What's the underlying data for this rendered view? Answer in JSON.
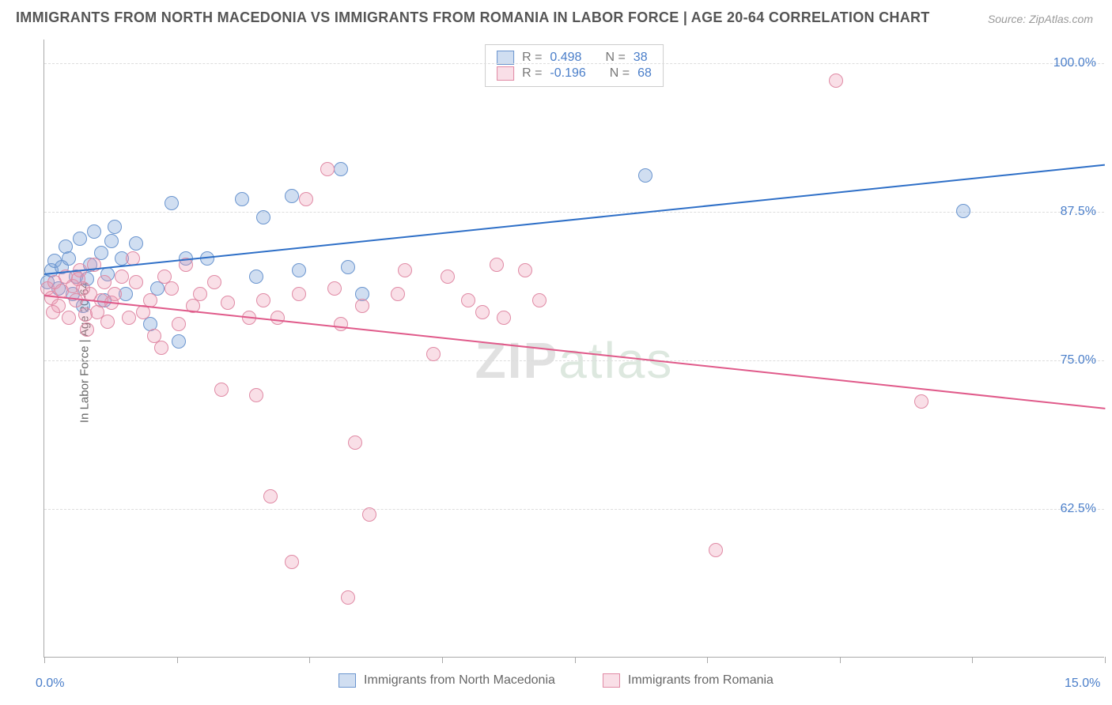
{
  "title": "IMMIGRANTS FROM NORTH MACEDONIA VS IMMIGRANTS FROM ROMANIA IN LABOR FORCE | AGE 20-64 CORRELATION CHART",
  "source": "Source: ZipAtlas.com",
  "watermark": {
    "part1": "ZIP",
    "part2": "atlas"
  },
  "ylabel": "In Labor Force | Age 20-64",
  "chart": {
    "type": "scatter",
    "xlim": [
      0,
      15
    ],
    "ylim": [
      50,
      102
    ],
    "x_ticks": [
      0,
      1.875,
      3.75,
      5.625,
      7.5,
      9.375,
      11.25,
      13.125,
      15
    ],
    "y_gridlines": [
      62.5,
      75.0,
      87.5,
      100.0
    ],
    "y_tick_labels": [
      "62.5%",
      "75.0%",
      "87.5%",
      "100.0%"
    ],
    "x_tick_labels": {
      "left": "0.0%",
      "right": "15.0%"
    },
    "background_color": "#ffffff",
    "grid_color": "#dddddd",
    "axis_color": "#aaaaaa",
    "marker_radius": 9,
    "marker_stroke_width": 1.5,
    "trend_line_width": 2
  },
  "series": [
    {
      "name": "Immigrants from North Macedonia",
      "fill": "rgba(120,160,215,0.35)",
      "stroke": "#6a95cf",
      "trend_color": "#2e6fc7",
      "R": "0.498",
      "N": "38",
      "trend": {
        "x1": 0,
        "y1": 82.3,
        "x2": 15,
        "y2": 91.5
      },
      "points": [
        [
          0.05,
          81.5
        ],
        [
          0.1,
          82.5
        ],
        [
          0.15,
          83.3
        ],
        [
          0.2,
          81.0
        ],
        [
          0.25,
          82.8
        ],
        [
          0.3,
          84.5
        ],
        [
          0.35,
          83.5
        ],
        [
          0.4,
          80.5
        ],
        [
          0.45,
          82.0
        ],
        [
          0.5,
          85.2
        ],
        [
          0.55,
          79.5
        ],
        [
          0.6,
          81.8
        ],
        [
          0.65,
          83.0
        ],
        [
          0.7,
          85.8
        ],
        [
          0.8,
          84.0
        ],
        [
          0.85,
          80.0
        ],
        [
          0.9,
          82.2
        ],
        [
          1.0,
          86.2
        ],
        [
          1.1,
          83.5
        ],
        [
          1.15,
          80.5
        ],
        [
          1.3,
          84.8
        ],
        [
          1.5,
          78.0
        ],
        [
          1.6,
          81.0
        ],
        [
          1.8,
          88.2
        ],
        [
          1.9,
          76.5
        ],
        [
          2.0,
          83.5
        ],
        [
          2.3,
          83.5
        ],
        [
          2.8,
          88.5
        ],
        [
          3.0,
          82.0
        ],
        [
          3.1,
          87.0
        ],
        [
          3.5,
          88.8
        ],
        [
          3.6,
          82.5
        ],
        [
          4.2,
          91.0
        ],
        [
          4.3,
          82.8
        ],
        [
          4.5,
          80.5
        ],
        [
          8.5,
          90.5
        ],
        [
          13.0,
          87.5
        ],
        [
          0.95,
          85.0
        ]
      ]
    },
    {
      "name": "Immigrants from Romania",
      "fill": "rgba(235,150,175,0.30)",
      "stroke": "#e08aa5",
      "trend_color": "#e05a8a",
      "R": "-0.196",
      "N": "68",
      "trend": {
        "x1": 0,
        "y1": 80.5,
        "x2": 15,
        "y2": 71.0
      },
      "points": [
        [
          0.05,
          81.0
        ],
        [
          0.1,
          80.2
        ],
        [
          0.15,
          81.5
        ],
        [
          0.2,
          79.5
        ],
        [
          0.25,
          80.8
        ],
        [
          0.3,
          82.0
        ],
        [
          0.35,
          78.5
        ],
        [
          0.4,
          81.2
        ],
        [
          0.45,
          80.0
        ],
        [
          0.5,
          82.5
        ],
        [
          0.55,
          81.0
        ],
        [
          0.6,
          77.5
        ],
        [
          0.65,
          80.5
        ],
        [
          0.7,
          83.0
        ],
        [
          0.75,
          79.0
        ],
        [
          0.8,
          80.0
        ],
        [
          0.85,
          81.5
        ],
        [
          0.9,
          78.2
        ],
        [
          0.95,
          79.8
        ],
        [
          1.0,
          80.5
        ],
        [
          1.1,
          82.0
        ],
        [
          1.2,
          78.5
        ],
        [
          1.3,
          81.5
        ],
        [
          1.4,
          79.0
        ],
        [
          1.5,
          80.0
        ],
        [
          1.55,
          77.0
        ],
        [
          1.7,
          82.0
        ],
        [
          1.8,
          81.0
        ],
        [
          1.9,
          78.0
        ],
        [
          2.0,
          83.0
        ],
        [
          2.1,
          79.5
        ],
        [
          2.2,
          80.5
        ],
        [
          2.4,
          81.5
        ],
        [
          2.5,
          72.5
        ],
        [
          2.6,
          79.8
        ],
        [
          2.9,
          78.5
        ],
        [
          3.0,
          72.0
        ],
        [
          3.1,
          80.0
        ],
        [
          3.2,
          63.5
        ],
        [
          3.3,
          78.5
        ],
        [
          3.5,
          58.0
        ],
        [
          3.6,
          80.5
        ],
        [
          3.7,
          88.5
        ],
        [
          4.0,
          91.0
        ],
        [
          4.1,
          81.0
        ],
        [
          4.2,
          78.0
        ],
        [
          4.3,
          55.0
        ],
        [
          4.4,
          68.0
        ],
        [
          4.5,
          79.5
        ],
        [
          4.6,
          62.0
        ],
        [
          5.0,
          80.5
        ],
        [
          5.1,
          82.5
        ],
        [
          5.5,
          75.5
        ],
        [
          5.7,
          82.0
        ],
        [
          6.0,
          80.0
        ],
        [
          6.2,
          79.0
        ],
        [
          6.4,
          83.0
        ],
        [
          6.5,
          78.5
        ],
        [
          6.8,
          82.5
        ],
        [
          7.0,
          80.0
        ],
        [
          9.5,
          59.0
        ],
        [
          11.2,
          98.5
        ],
        [
          12.4,
          71.5
        ],
        [
          1.25,
          83.5
        ],
        [
          1.65,
          76.0
        ],
        [
          0.12,
          79.0
        ],
        [
          0.48,
          81.8
        ],
        [
          0.58,
          78.8
        ]
      ]
    }
  ],
  "legend_top": {
    "r_label": "R =",
    "n_label": "N ="
  }
}
